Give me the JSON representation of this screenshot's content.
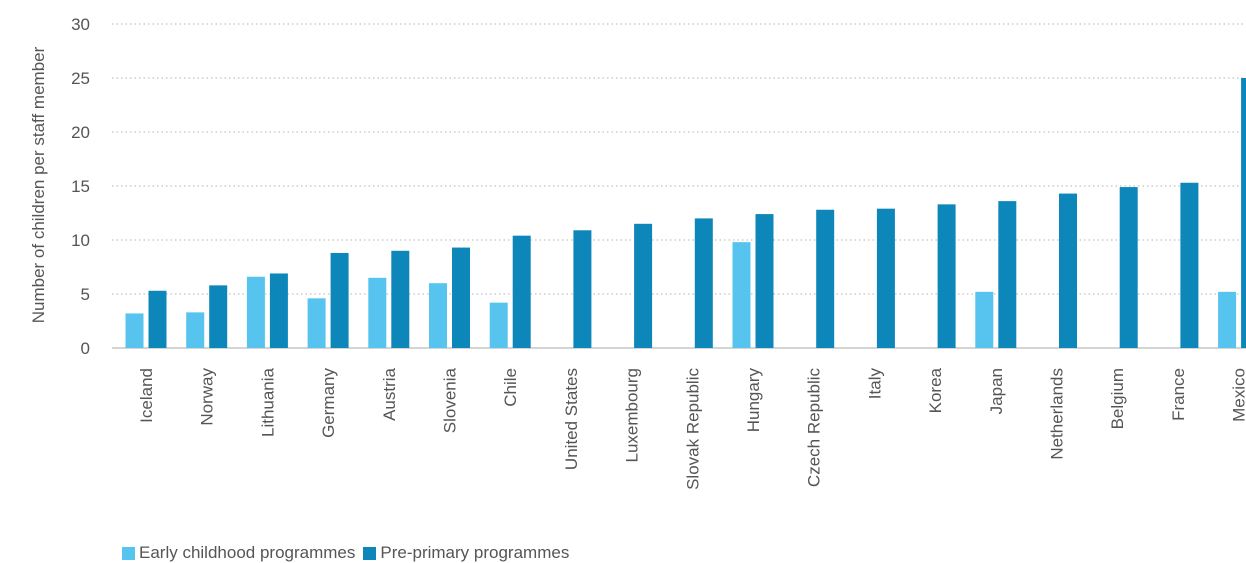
{
  "chart_data": {
    "type": "bar",
    "ylabel": "Number of children per staff member",
    "ylim": [
      0,
      30
    ],
    "yticks": [
      0,
      5,
      10,
      15,
      20,
      25,
      30
    ],
    "grid": true,
    "legend_position": "bottom-left",
    "categories": [
      "Iceland",
      "Norway",
      "Lithuania",
      "Germany",
      "Austria",
      "Slovenia",
      "Chile",
      "United States",
      "Luxembourg",
      "Slovak Republic",
      "Hungary",
      "Czech Republic",
      "Italy",
      "Korea",
      "Japan",
      "Netherlands",
      "Belgium",
      "France",
      "Mexico"
    ],
    "series": [
      {
        "name": "Early childhood programmes",
        "color": "#56c4ee",
        "values": [
          3.2,
          3.3,
          6.6,
          4.6,
          6.5,
          6.0,
          4.2,
          null,
          null,
          null,
          9.8,
          null,
          null,
          null,
          5.2,
          null,
          null,
          null,
          5.2
        ]
      },
      {
        "name": "Pre-primary programmes",
        "color": "#0d87b9",
        "values": [
          5.3,
          5.8,
          6.9,
          8.8,
          9.0,
          9.3,
          10.4,
          10.9,
          11.5,
          12.0,
          12.4,
          12.8,
          12.9,
          13.3,
          13.6,
          14.3,
          14.9,
          15.3,
          25.0
        ]
      }
    ]
  }
}
